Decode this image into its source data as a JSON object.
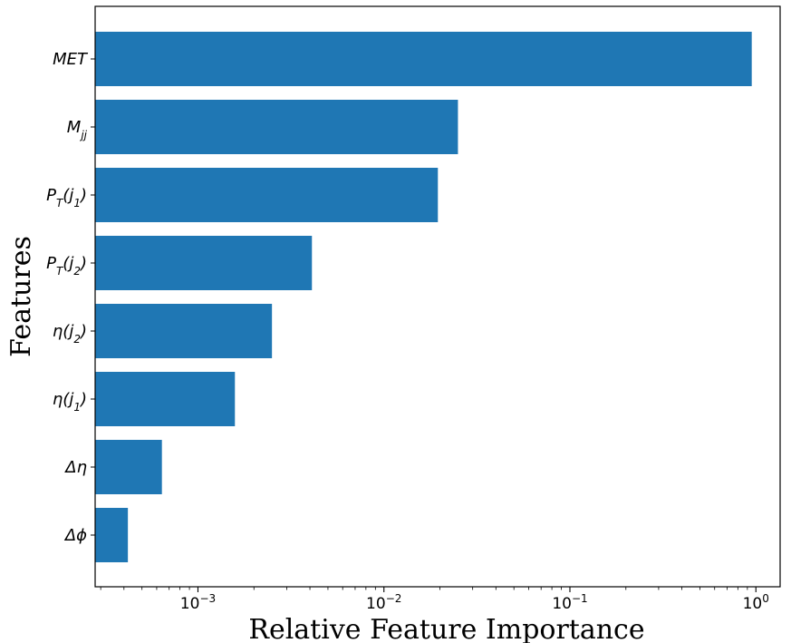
{
  "chart_data": {
    "type": "bar",
    "orientation": "horizontal",
    "categories": [
      "MET",
      "M_jj",
      "P_T(j_1)",
      "P_T(j_2)",
      "η(j_2)",
      "η(j_1)",
      "Δη",
      "Δϕ"
    ],
    "values": [
      0.95,
      0.025,
      0.0195,
      0.0041,
      0.0025,
      0.00158,
      0.00064,
      0.00042
    ],
    "xlabel": "Relative Feature Importance",
    "ylabel": "Features",
    "xscale": "log",
    "xlim": [
      0.00028,
      1.35
    ],
    "xticks": [
      {
        "base": "10",
        "exp": "−3",
        "value": 0.001
      },
      {
        "base": "10",
        "exp": "−2",
        "value": 0.01
      },
      {
        "base": "10",
        "exp": "−1",
        "value": 0.1
      },
      {
        "base": "10",
        "exp": "0",
        "value": 1
      }
    ],
    "bar_color": "#1f77b4",
    "grid": false
  }
}
